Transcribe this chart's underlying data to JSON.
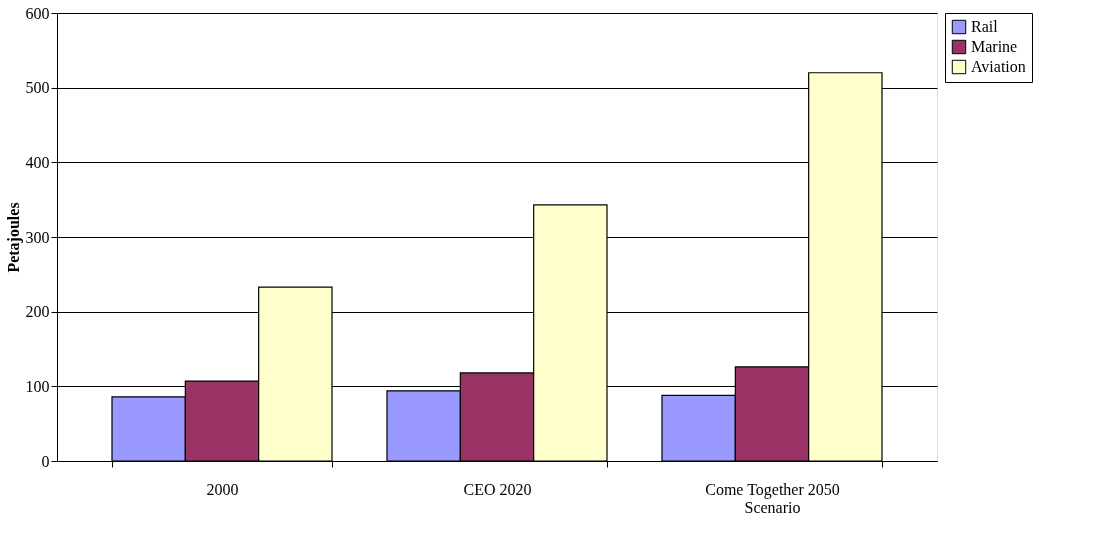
{
  "chart_data": {
    "type": "bar",
    "ylabel": "Petajoules",
    "categories": [
      "2000",
      "CEO 2020",
      "Come Together 2050 Scenario"
    ],
    "series": [
      {
        "name": "Rail",
        "color": "#9999ff",
        "values": [
          86,
          94,
          88
        ]
      },
      {
        "name": "Marine",
        "color": "#993366",
        "values": [
          107,
          118,
          126
        ]
      },
      {
        "name": "Aviation",
        "color": "#ffffcc",
        "values": [
          233,
          343,
          520
        ]
      }
    ],
    "ylim": [
      0,
      600
    ],
    "yticks": [
      0,
      100,
      200,
      300,
      400,
      500,
      600
    ],
    "grid": "y",
    "legend": "right"
  }
}
